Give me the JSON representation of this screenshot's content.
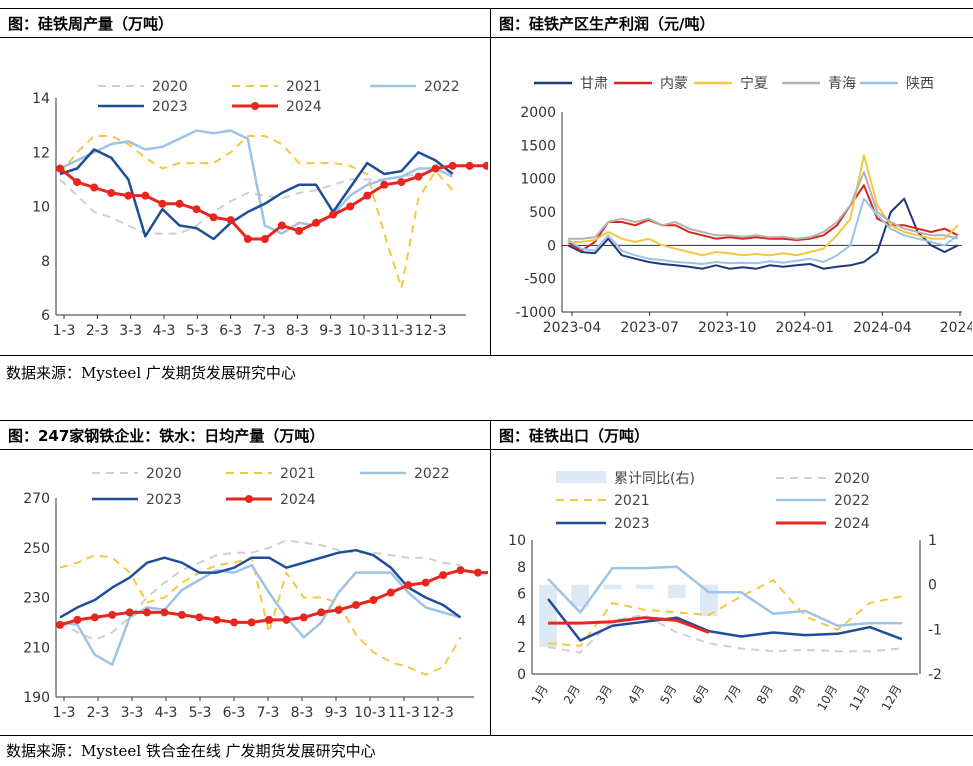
{
  "panels": {
    "p1": {
      "title": "图：硅铁周产量（万吨）"
    },
    "p2": {
      "title": "图：硅铁产区生产利润（元/吨）"
    },
    "p3": {
      "title": "图：247家钢铁企业：铁水：日均产量（万吨）"
    },
    "p4": {
      "title": "图：硅铁出口（万吨）"
    }
  },
  "sources": {
    "top": "数据来源：Mysteel  广发期货发展研究中心",
    "bottom": "数据来源：Mysteel  铁合金在线  广发期货发展研究中心"
  },
  "chart_data": [
    {
      "id": "p1",
      "type": "line",
      "x_ticks": [
        "1-3",
        "2-3",
        "3-3",
        "4-3",
        "5-3",
        "6-3",
        "7-3",
        "8-3",
        "9-3",
        "10-3",
        "11-3",
        "12-3"
      ],
      "ylim": [
        6,
        14
      ],
      "y_ticks": [
        6,
        8,
        10,
        12,
        14
      ],
      "legend": "top",
      "series": [
        {
          "name": "2020",
          "color": "#cfcfcf",
          "dash": true,
          "width": 2,
          "values": [
            11.0,
            10.4,
            9.8,
            9.6,
            9.3,
            9.0,
            9.0,
            9.0,
            9.3,
            9.8,
            10.2,
            10.5,
            10.4,
            10.3,
            10.5,
            10.6,
            10.8,
            11.0,
            11.0,
            11.0,
            11.1,
            11.2,
            11.3,
            11.3
          ]
        },
        {
          "name": "2021",
          "color": "#f5c842",
          "dash": true,
          "width": 2,
          "values": [
            11.2,
            12.0,
            12.6,
            12.6,
            12.3,
            11.8,
            11.4,
            11.6,
            11.6,
            11.6,
            12.0,
            12.6,
            12.6,
            12.3,
            11.6,
            11.6,
            11.6,
            11.5,
            11.2,
            9.0,
            7.0,
            10.3,
            11.3,
            10.6
          ]
        },
        {
          "name": "2022",
          "color": "#9dc3e6",
          "dash": false,
          "width": 2.5,
          "values": [
            11.4,
            11.7,
            12.0,
            12.3,
            12.4,
            12.1,
            12.2,
            12.5,
            12.8,
            12.7,
            12.8,
            12.5,
            9.3,
            9.0,
            9.4,
            9.3,
            9.7,
            10.4,
            10.8,
            11.0,
            11.1,
            11.4,
            11.4,
            11.1
          ]
        },
        {
          "name": "2023",
          "color": "#1f4e99",
          "dash": false,
          "width": 2.5,
          "values": [
            11.2,
            11.4,
            12.1,
            11.8,
            11.0,
            8.9,
            9.9,
            9.3,
            9.2,
            8.8,
            9.4,
            9.8,
            10.1,
            10.5,
            10.8,
            10.8,
            9.8,
            10.7,
            11.6,
            11.2,
            11.3,
            12.0,
            11.7,
            11.2
          ]
        },
        {
          "name": "2024",
          "color": "#e8261f",
          "dash": false,
          "width": 3,
          "markers": true,
          "values": [
            11.4,
            10.9,
            10.7,
            10.5,
            10.4,
            10.4,
            10.1,
            10.1,
            9.9,
            9.6,
            9.5,
            8.8,
            8.8,
            9.3,
            9.1,
            9.4,
            9.7,
            10.0,
            10.4,
            10.8,
            10.9,
            11.1,
            11.4,
            11.5,
            11.5,
            11.5,
            11.5,
            11.5,
            11.4,
            11.4
          ]
        }
      ]
    },
    {
      "id": "p2",
      "type": "line",
      "x_ticks": [
        "2023-04",
        "2023-07",
        "2023-10",
        "2024-01",
        "2024-04",
        "2024-"
      ],
      "ylim": [
        -1000,
        2000
      ],
      "y_ticks": [
        -1000,
        -500,
        0,
        500,
        1000,
        1500,
        2000
      ],
      "legend": "top",
      "series": [
        {
          "name": "甘肃",
          "color": "#1f3a7a",
          "values": [
            0,
            -100,
            -120,
            100,
            -150,
            -200,
            -250,
            -280,
            -300,
            -320,
            -350,
            -300,
            -350,
            -330,
            -350,
            -300,
            -320,
            -300,
            -280,
            -350,
            -320,
            -300,
            -250,
            -100,
            500,
            700,
            200,
            0,
            -100,
            0
          ]
        },
        {
          "name": "内蒙",
          "color": "#d9261c",
          "values": [
            50,
            -80,
            50,
            350,
            350,
            300,
            380,
            300,
            300,
            200,
            150,
            100,
            120,
            100,
            120,
            100,
            100,
            80,
            100,
            150,
            300,
            600,
            900,
            400,
            300,
            300,
            250,
            200,
            250,
            150
          ]
        },
        {
          "name": "宁夏",
          "color": "#f5c842",
          "values": [
            50,
            50,
            80,
            200,
            100,
            50,
            100,
            0,
            -50,
            -100,
            -150,
            -100,
            -120,
            -150,
            -130,
            -150,
            -120,
            -150,
            -100,
            -50,
            150,
            400,
            1350,
            600,
            300,
            200,
            150,
            100,
            100,
            300
          ]
        },
        {
          "name": "青海",
          "color": "#b3b3b3",
          "values": [
            100,
            100,
            120,
            350,
            400,
            350,
            400,
            300,
            350,
            250,
            200,
            150,
            150,
            130,
            150,
            120,
            130,
            100,
            120,
            200,
            350,
            600,
            1100,
            500,
            350,
            250,
            200,
            150,
            150,
            100
          ]
        },
        {
          "name": "陕西",
          "color": "#9dc3e6",
          "values": [
            80,
            -50,
            -80,
            150,
            -80,
            -150,
            -200,
            -220,
            -250,
            -260,
            -280,
            -250,
            -270,
            -260,
            -270,
            -240,
            -260,
            -230,
            -200,
            -250,
            -150,
            0,
            700,
            450,
            250,
            150,
            100,
            50,
            0,
            150
          ]
        }
      ]
    },
    {
      "id": "p3",
      "type": "line",
      "x_ticks": [
        "1-3",
        "2-3",
        "3-3",
        "4-3",
        "5-3",
        "6-3",
        "7-3",
        "8-3",
        "9-3",
        "10-3",
        "11-3",
        "12-3"
      ],
      "ylim": [
        190,
        270
      ],
      "y_ticks": [
        190,
        210,
        230,
        250,
        270
      ],
      "legend": "top",
      "series": [
        {
          "name": "2020",
          "color": "#cfcfcf",
          "dash": true,
          "width": 2,
          "values": [
            220,
            216,
            213,
            216,
            222,
            230,
            236,
            241,
            244,
            247,
            248,
            248,
            250,
            253,
            252,
            251,
            249,
            248,
            248,
            247,
            246,
            246,
            244,
            243
          ]
        },
        {
          "name": "2021",
          "color": "#f5c842",
          "dash": true,
          "width": 2,
          "values": [
            242,
            244,
            247,
            246,
            240,
            228,
            230,
            236,
            240,
            243,
            244,
            246,
            216,
            240,
            230,
            230,
            228,
            215,
            208,
            204,
            202,
            199,
            202,
            214
          ]
        },
        {
          "name": "2022",
          "color": "#9dc3e6",
          "dash": false,
          "width": 2.5,
          "values": [
            220,
            219,
            207,
            203,
            222,
            226,
            225,
            233,
            237,
            241,
            240,
            243,
            232,
            222,
            214,
            220,
            232,
            240,
            240,
            240,
            232,
            226,
            224,
            222
          ]
        },
        {
          "name": "2023",
          "color": "#1f4e99",
          "dash": false,
          "width": 2.5,
          "values": [
            222,
            226,
            229,
            234,
            238,
            244,
            246,
            244,
            240,
            240,
            242,
            246,
            246,
            242,
            244,
            246,
            248,
            249,
            247,
            242,
            234,
            230,
            227,
            222
          ]
        },
        {
          "name": "2024",
          "color": "#e8261f",
          "dash": false,
          "width": 3,
          "markers": true,
          "values": [
            219,
            221,
            222,
            223,
            224,
            224,
            224,
            223,
            222,
            221,
            220,
            220,
            221,
            221,
            222,
            224,
            225,
            227,
            229,
            232,
            235,
            236,
            239,
            241,
            240,
            240,
            239,
            239,
            240,
            236
          ]
        }
      ]
    },
    {
      "id": "p4",
      "type": "line",
      "x_ticks": [
        "1月",
        "2月",
        "3月",
        "4月",
        "5月",
        "6月",
        "7月",
        "8月",
        "9月",
        "10月",
        "11月",
        "12月"
      ],
      "ylim": [
        0,
        10
      ],
      "y_ticks": [
        0,
        2,
        4,
        6,
        8,
        10
      ],
      "y2lim": [
        -2,
        1
      ],
      "y2_ticks": [
        -2,
        -1,
        0,
        1
      ],
      "legend": "top",
      "bars": {
        "name": "累计同比(右)",
        "color": "#dde9f5",
        "values": [
          -1.4,
          -0.5,
          -0.1,
          -0.1,
          -0.3,
          -0.7
        ]
      },
      "series": [
        {
          "name": "2020",
          "color": "#cfcfcf",
          "dash": true,
          "width": 2,
          "values": [
            2.0,
            1.6,
            4.0,
            4.4,
            3.1,
            2.3,
            1.9,
            1.7,
            1.8,
            1.7,
            1.7,
            1.9
          ]
        },
        {
          "name": "2021",
          "color": "#f5c842",
          "dash": true,
          "width": 2,
          "values": [
            2.3,
            2.1,
            5.3,
            4.8,
            4.6,
            4.4,
            5.8,
            7.0,
            4.3,
            3.3,
            5.3,
            5.8
          ]
        },
        {
          "name": "2022",
          "color": "#9dc3e6",
          "dash": false,
          "width": 2.5,
          "values": [
            7.1,
            4.6,
            7.9,
            7.9,
            8.0,
            6.1,
            6.1,
            4.5,
            4.7,
            3.6,
            3.8,
            3.8
          ]
        },
        {
          "name": "2023",
          "color": "#1f4e99",
          "dash": false,
          "width": 2.5,
          "values": [
            5.6,
            2.5,
            3.6,
            3.9,
            4.2,
            3.2,
            2.8,
            3.1,
            2.9,
            3.0,
            3.5,
            2.6
          ]
        },
        {
          "name": "2024",
          "color": "#e8261f",
          "dash": false,
          "width": 3,
          "values": [
            3.8,
            3.8,
            3.9,
            4.2,
            4.0,
            3.1
          ]
        }
      ]
    }
  ]
}
